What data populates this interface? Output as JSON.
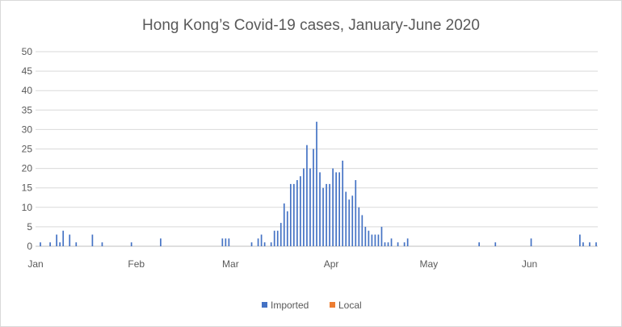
{
  "chart_data": {
    "type": "bar",
    "stacked": true,
    "title": "Hong Kong’s Covid-19 cases, January-June 2020",
    "xlabel": "",
    "ylabel": "",
    "ylim": [
      0,
      50
    ],
    "yticks": [
      0,
      5,
      10,
      15,
      20,
      25,
      30,
      35,
      40,
      45,
      50
    ],
    "x_month_labels": [
      "Jan",
      "Feb",
      "Mar",
      "Apr",
      "May",
      "Jun"
    ],
    "x_month_start_day": [
      0,
      31,
      60,
      91,
      121,
      152
    ],
    "total_days": 173,
    "grid": true,
    "legend_position": "bottom",
    "colors": {
      "Imported": "#4472c4",
      "Local": "#ed7d31",
      "grid": "#d9d9d9",
      "axis": "#bfbfbf",
      "text": "#595959"
    },
    "series": [
      {
        "name": "Imported",
        "values": [
          0,
          0,
          1,
          0,
          1,
          0,
          3,
          1,
          4,
          0,
          3,
          0,
          1,
          0,
          0,
          1,
          0,
          3,
          1,
          0,
          0,
          0,
          0,
          0,
          0,
          0,
          0,
          0,
          0,
          0,
          0,
          0,
          2,
          0,
          0,
          0,
          0,
          0,
          0,
          0,
          0,
          0,
          0,
          0,
          0,
          0,
          0,
          0,
          0,
          0,
          0,
          0,
          0,
          0,
          0,
          0,
          0,
          0,
          0,
          2,
          0,
          0,
          0,
          0,
          0,
          1,
          0,
          2,
          3,
          1,
          0,
          1,
          1,
          4,
          4,
          6,
          11,
          9,
          16,
          15,
          17,
          18,
          18,
          26,
          20,
          24,
          31,
          18,
          15,
          15,
          15,
          20,
          19,
          16,
          22,
          14,
          12,
          13,
          16,
          10,
          8,
          5,
          4,
          3,
          3,
          2,
          1,
          1,
          2,
          0,
          1,
          0,
          1,
          1,
          2,
          0,
          0,
          0,
          0,
          0,
          0,
          0,
          0,
          0,
          0,
          0,
          0,
          0,
          0,
          0,
          0,
          0,
          0,
          0,
          0,
          1,
          0,
          0,
          1,
          0,
          0,
          1,
          0,
          1,
          0,
          0,
          0,
          0,
          0,
          1,
          0,
          0,
          0,
          0,
          0,
          0,
          0,
          3,
          0,
          1,
          0,
          1,
          0,
          1,
          0,
          1,
          0,
          0,
          0,
          0,
          0,
          0,
          0,
          0,
          0,
          0
        ],
        "note": ""
      },
      {
        "name": "Local",
        "values": [
          0,
          0,
          0,
          0,
          0,
          0,
          0,
          0,
          0,
          0,
          0,
          0,
          0,
          0,
          0,
          0,
          0,
          0,
          0,
          0,
          0,
          0,
          0,
          0,
          0,
          0,
          0,
          0,
          0,
          0,
          0,
          0,
          0,
          0,
          0,
          0,
          0,
          0,
          0,
          0,
          0,
          0,
          0,
          0,
          0,
          0,
          0,
          0,
          0,
          0,
          0,
          0,
          0,
          0,
          0,
          0,
          0,
          0,
          0,
          0,
          0,
          0,
          0,
          0,
          0,
          0,
          0,
          0,
          0,
          0,
          0,
          0,
          0,
          0,
          0,
          0,
          0,
          0,
          0,
          0,
          0,
          0,
          0,
          0,
          0,
          0,
          0,
          0,
          0,
          0,
          0,
          0,
          0,
          0,
          0,
          0,
          0,
          0,
          0,
          0,
          0,
          0,
          0,
          0,
          0,
          0,
          0,
          0,
          0,
          0,
          0,
          0,
          0,
          0,
          0,
          0,
          0,
          0,
          0,
          0,
          0,
          0,
          0,
          0,
          0,
          0,
          0,
          0,
          0,
          0,
          0,
          0,
          0,
          0,
          0,
          0,
          0,
          0,
          0,
          0,
          0,
          0,
          0,
          0,
          0,
          0,
          0,
          0,
          0,
          0,
          0,
          0,
          0,
          0,
          0,
          0,
          0,
          0,
          0,
          0,
          0,
          0,
          0,
          0,
          0,
          0,
          0,
          0,
          0,
          0,
          0,
          0,
          0
        ]
      }
    ]
  },
  "daily": {
    "imported": [
      0,
      1,
      0,
      0,
      1,
      0,
      3,
      1,
      4,
      0,
      3,
      0,
      1,
      0,
      0,
      0,
      0,
      3,
      0,
      0,
      1,
      0,
      0,
      0,
      0,
      0,
      0,
      0,
      0,
      1,
      0,
      0,
      0,
      0,
      0,
      0,
      0,
      0,
      2,
      0,
      0,
      0,
      0,
      0,
      0,
      0,
      0,
      0,
      0,
      0,
      0,
      0,
      0,
      0,
      0,
      0,
      0,
      2,
      2,
      2,
      0,
      0,
      0,
      0,
      0,
      0,
      1,
      0,
      2,
      3,
      1,
      0,
      1,
      4,
      4,
      6,
      11,
      9,
      16,
      16,
      17,
      18,
      20,
      26,
      20,
      25,
      32,
      19,
      15,
      16,
      16,
      20,
      19,
      19,
      22,
      14,
      12,
      13,
      17,
      10,
      8,
      5,
      4,
      3,
      3,
      3,
      5,
      1,
      1,
      2,
      0,
      1,
      0,
      1,
      2,
      0,
      0,
      0,
      0,
      0,
      0,
      0,
      0,
      0,
      0,
      0,
      0,
      0,
      0,
      0,
      0,
      0,
      0,
      0,
      0,
      0,
      1,
      0,
      0,
      0,
      0,
      1,
      0,
      0,
      0,
      0,
      0,
      0,
      0,
      0,
      0,
      0,
      2,
      0,
      0,
      0,
      0,
      0,
      0,
      0,
      0,
      0,
      0,
      0,
      0,
      0,
      0,
      3,
      1,
      0,
      1,
      0,
      1,
      0,
      1
    ],
    "local": [
      0,
      0,
      0,
      0,
      0,
      0,
      0,
      0,
      0,
      0,
      0,
      0,
      0,
      0,
      0,
      0,
      0,
      0,
      0,
      0,
      0,
      0,
      0,
      0,
      0,
      0,
      0,
      0,
      0,
      0,
      0,
      0,
      0,
      0,
      0,
      0,
      0,
      0,
      0,
      0,
      0,
      0,
      0,
      0,
      0,
      0,
      0,
      0,
      0,
      0,
      0,
      0,
      0,
      0,
      0,
      0,
      0,
      0,
      0,
      0,
      0,
      0,
      0,
      0,
      0,
      0,
      0,
      0,
      0,
      0,
      0,
      0,
      0,
      0,
      0,
      0,
      0,
      0,
      0,
      0,
      0,
      0,
      0,
      0,
      0,
      0,
      0,
      0,
      0,
      0,
      0,
      0,
      0,
      0,
      0,
      0,
      0,
      0,
      0,
      0,
      0,
      0,
      0,
      0,
      0,
      0,
      0,
      0,
      0,
      0,
      0,
      0,
      0,
      0,
      0,
      0,
      0,
      0,
      0,
      0,
      0,
      0,
      0,
      0,
      0,
      0,
      0,
      0,
      0,
      0,
      0,
      0,
      0,
      0,
      0,
      0,
      0,
      0,
      0,
      0,
      0,
      0,
      0,
      0,
      0,
      0,
      0,
      0,
      0,
      0,
      0,
      0,
      0,
      0,
      0,
      0,
      0,
      0,
      0,
      0,
      0,
      0,
      0,
      0,
      0,
      0,
      0,
      0,
      0,
      0,
      0,
      0,
      0,
      0,
      0
    ]
  }
}
